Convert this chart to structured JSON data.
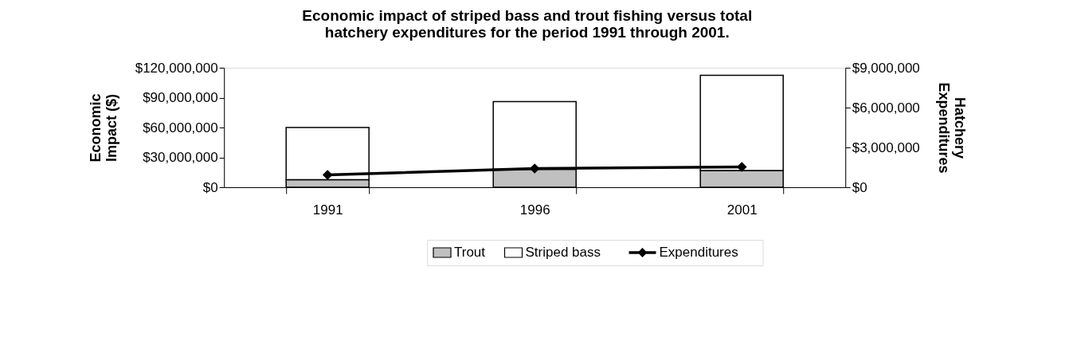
{
  "chart_data": {
    "type": "bar",
    "title": "Economic impact of striped bass and trout fishing versus total hatchery expenditures for the  period 1991 through 2001.",
    "ylabel": "Economic Impact ($)",
    "y2label": "Hatchery Expenditures",
    "categories": [
      "1991",
      "1996",
      "2001"
    ],
    "stacked": true,
    "series": [
      {
        "name": "Trout",
        "color": "#c0c0c0",
        "values": [
          7600000,
          18000000,
          16800000
        ]
      },
      {
        "name": "Striped bass",
        "color": "#ffffff",
        "values": [
          52400000,
          68000000,
          95600000
        ]
      },
      {
        "name": "Expenditures",
        "type": "line",
        "axis": "y2",
        "color": "#000000",
        "values": [
          930000,
          1410000,
          1530000
        ]
      }
    ],
    "ylim": [
      0,
      120000000
    ],
    "yticks": [
      {
        "value": 0,
        "label": "$0"
      },
      {
        "value": 30000000,
        "label": "$30,000,000"
      },
      {
        "value": 60000000,
        "label": "$60,000,000"
      },
      {
        "value": 90000000,
        "label": "$90,000,000"
      },
      {
        "value": 120000000,
        "label": "$120,000,000"
      }
    ],
    "y2lim": [
      0,
      9000000
    ],
    "y2ticks": [
      {
        "value": 0,
        "label": "$0"
      },
      {
        "value": 3000000,
        "label": "$3,000,000"
      },
      {
        "value": 6000000,
        "label": "$6,000,000"
      },
      {
        "value": 9000000,
        "label": "$9,000,000"
      }
    ],
    "marker": "diamond",
    "line_style": "solid",
    "legend": "bottom",
    "grid": false
  }
}
